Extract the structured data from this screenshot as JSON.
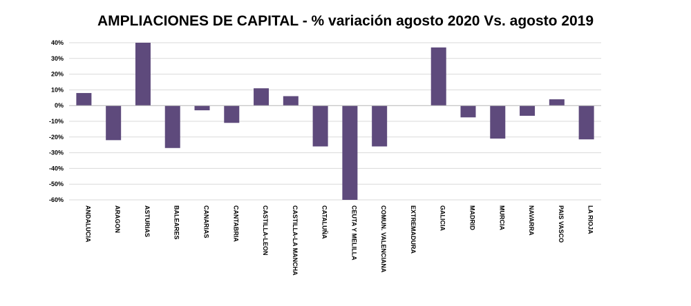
{
  "chart_data": {
    "type": "bar",
    "title": "AMPLIACIONES DE CAPITAL - % variación agosto 2020 Vs. agosto 2019",
    "xlabel": "",
    "ylabel": "",
    "ylim": [
      -60,
      40
    ],
    "yticks": [
      40,
      30,
      20,
      10,
      0,
      -10,
      -20,
      -30,
      -40,
      -50,
      -60
    ],
    "ytick_labels": [
      "40%",
      "30%",
      "20%",
      "10%",
      "0%",
      "-10%",
      "-20%",
      "-30%",
      "-40%",
      "-50%",
      "-60%"
    ],
    "grid": true,
    "bar_color": "#5e4a7c",
    "categories": [
      "ANDALUCIA",
      "ARAGON",
      "ASTURIAS",
      "BALEARES",
      "CANARIAS",
      "CANTABRIA",
      "CASTILLA-LEON",
      "CASTILLA-LA MANCHA",
      "CATALUÑA",
      "CEUTA Y MELILLA",
      "COMUN. VALENCIANA",
      "EXTREMADURA",
      "GALICIA",
      "MADRID",
      "MURCIA",
      "NAVARRA",
      "PAIS VASCO",
      "LA RIOJA"
    ],
    "values": [
      8,
      -22,
      40,
      -27,
      -3,
      -11,
      11,
      6,
      -26,
      -60,
      -26,
      0,
      37,
      -7.5,
      -21,
      -6.5,
      4,
      -21.5
    ]
  }
}
